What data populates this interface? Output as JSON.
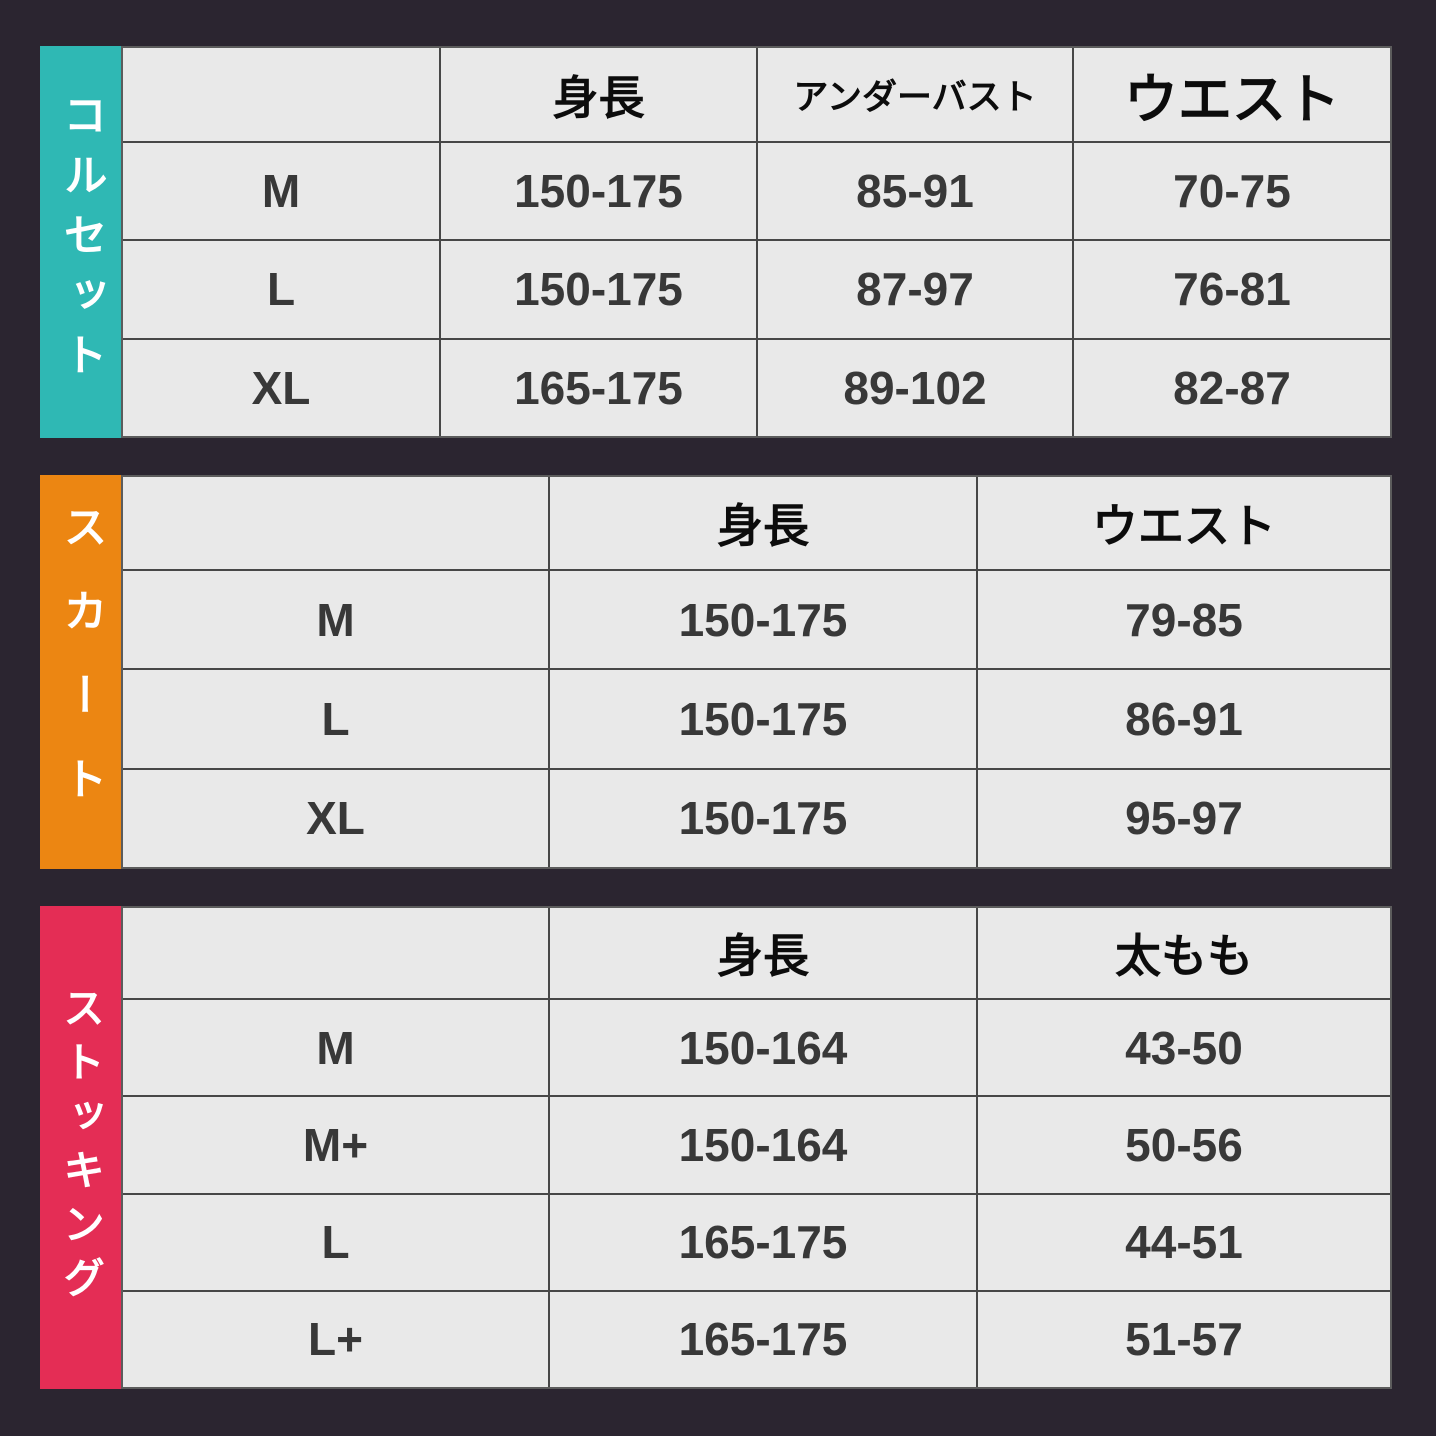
{
  "page": {
    "background_color": "#2b2530",
    "cell_color": "#e9e9e9",
    "grid_line_color": "#474747",
    "header_text_color": "#0c0c0c",
    "value_text_color": "#383838",
    "sidebar_text_color": "#ffffff"
  },
  "chart_data": [
    {
      "type": "table",
      "title": "コルセット",
      "accent": "#2fb8b4",
      "columns": [
        "",
        "身長",
        "アンダーバスト",
        "ウエスト"
      ],
      "rows": [
        [
          "M",
          "150-175",
          "85-91",
          "70-75"
        ],
        [
          "L",
          "150-175",
          "87-97",
          "76-81"
        ],
        [
          "XL",
          "165-175",
          "89-102",
          "82-87"
        ]
      ]
    },
    {
      "type": "table",
      "title": "スカート",
      "accent": "#ec8612",
      "columns": [
        "",
        "身長",
        "ウエスト"
      ],
      "rows": [
        [
          "M",
          "150-175",
          "79-85"
        ],
        [
          "L",
          "150-175",
          "86-91"
        ],
        [
          "XL",
          "150-175",
          "95-97"
        ]
      ]
    },
    {
      "type": "table",
      "title": "ストッキング",
      "accent": "#e42d55",
      "columns": [
        "",
        "身長",
        "太もも"
      ],
      "rows": [
        [
          "M",
          "150-164",
          "43-50"
        ],
        [
          "M+",
          "150-164",
          "50-56"
        ],
        [
          "L",
          "165-175",
          "44-51"
        ],
        [
          "L+",
          "165-175",
          "51-57"
        ]
      ]
    }
  ]
}
